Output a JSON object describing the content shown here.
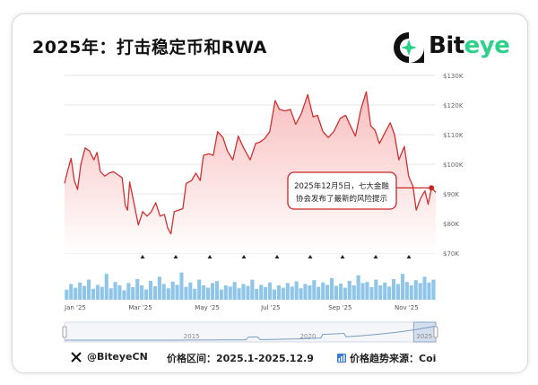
{
  "header": {
    "title": "2025年：打击稳定币和RWA",
    "brand_prefix": "Bit",
    "brand_suffix": "eye"
  },
  "colors": {
    "line": "#d32f2f",
    "area_top": "#f8b4b4",
    "area_bottom": "#ffffff",
    "volume": "#8ec5e8",
    "brand_green": "#2fd08a"
  },
  "annotation": {
    "line1": "2025年12月5日，七大金融",
    "line2": "协会发布了最新的风险提示",
    "date": "2025-12-05",
    "value": 92000
  },
  "footer": {
    "handle": "@BiteyeCN",
    "range_label": "价格区间：2025.1-2025.12.9",
    "source_label": "价格趋势来源：Coi"
  },
  "chart_data": {
    "type": "line",
    "title": "2025年：打击稳定币和RWA",
    "xlabel": "",
    "ylabel": "",
    "x_range": [
      "2025-01-01",
      "2025-12-09"
    ],
    "ylim": [
      70000,
      130000
    ],
    "y_ticks": [
      "$70K",
      "$80K",
      "$90K",
      "$100K",
      "$110K",
      "$120K",
      "$130K"
    ],
    "y_tick_values": [
      70000,
      80000,
      90000,
      100000,
      110000,
      120000,
      130000
    ],
    "x_ticks": [
      "Jan '25",
      "Mar '25",
      "May '25",
      "Jul '25",
      "Sep '25",
      "Nov '25"
    ],
    "x_tick_months": [
      0,
      2,
      4,
      6,
      8,
      10
    ],
    "grid": true,
    "y_axis_side": "right",
    "series": [
      {
        "points": [
          [
            "2025-01-01",
            93500
          ],
          [
            "2025-01-04",
            98000
          ],
          [
            "2025-01-07",
            102000
          ],
          [
            "2025-01-10",
            94500
          ],
          [
            "2025-01-13",
            91500
          ],
          [
            "2025-01-16",
            100000
          ],
          [
            "2025-01-20",
            105500
          ],
          [
            "2025-01-24",
            104500
          ],
          [
            "2025-01-28",
            101500
          ],
          [
            "2025-01-31",
            104000
          ],
          [
            "2025-02-03",
            97500
          ],
          [
            "2025-02-07",
            96000
          ],
          [
            "2025-02-11",
            97000
          ],
          [
            "2025-02-15",
            97500
          ],
          [
            "2025-02-19",
            96500
          ],
          [
            "2025-02-23",
            95500
          ],
          [
            "2025-02-26",
            86000
          ],
          [
            "2025-02-28",
            84500
          ],
          [
            "2025-03-02",
            94000
          ],
          [
            "2025-03-05",
            88500
          ],
          [
            "2025-03-10",
            79500
          ],
          [
            "2025-03-14",
            84000
          ],
          [
            "2025-03-18",
            82500
          ],
          [
            "2025-03-22",
            84000
          ],
          [
            "2025-03-26",
            87000
          ],
          [
            "2025-03-30",
            82500
          ],
          [
            "2025-04-03",
            83000
          ],
          [
            "2025-04-06",
            78500
          ],
          [
            "2025-04-09",
            76500
          ],
          [
            "2025-04-12",
            84000
          ],
          [
            "2025-04-16",
            84500
          ],
          [
            "2025-04-20",
            85000
          ],
          [
            "2025-04-23",
            93500
          ],
          [
            "2025-04-28",
            94500
          ],
          [
            "2025-05-02",
            97000
          ],
          [
            "2025-05-06",
            94500
          ],
          [
            "2025-05-09",
            103000
          ],
          [
            "2025-05-14",
            103500
          ],
          [
            "2025-05-18",
            103000
          ],
          [
            "2025-05-22",
            111000
          ],
          [
            "2025-05-27",
            109000
          ],
          [
            "2025-05-31",
            104500
          ],
          [
            "2025-06-05",
            101500
          ],
          [
            "2025-06-10",
            109500
          ],
          [
            "2025-06-15",
            105500
          ],
          [
            "2025-06-21",
            101500
          ],
          [
            "2025-06-26",
            107000
          ],
          [
            "2025-06-30",
            107500
          ],
          [
            "2025-07-04",
            108500
          ],
          [
            "2025-07-09",
            111000
          ],
          [
            "2025-07-14",
            121500
          ],
          [
            "2025-07-18",
            118500
          ],
          [
            "2025-07-23",
            118000
          ],
          [
            "2025-07-28",
            118500
          ],
          [
            "2025-08-02",
            113500
          ],
          [
            "2025-08-07",
            117000
          ],
          [
            "2025-08-13",
            123500
          ],
          [
            "2025-08-18",
            116000
          ],
          [
            "2025-08-22",
            116500
          ],
          [
            "2025-08-27",
            111000
          ],
          [
            "2025-09-01",
            109000
          ],
          [
            "2025-09-06",
            111000
          ],
          [
            "2025-09-12",
            115500
          ],
          [
            "2025-09-17",
            116500
          ],
          [
            "2025-09-22",
            112500
          ],
          [
            "2025-09-26",
            109500
          ],
          [
            "2025-10-01",
            118500
          ],
          [
            "2025-10-06",
            124500
          ],
          [
            "2025-10-10",
            113000
          ],
          [
            "2025-10-14",
            111500
          ],
          [
            "2025-10-18",
            107000
          ],
          [
            "2025-10-23",
            110500
          ],
          [
            "2025-10-28",
            114000
          ],
          [
            "2025-11-01",
            110000
          ],
          [
            "2025-11-05",
            101500
          ],
          [
            "2025-11-10",
            106000
          ],
          [
            "2025-11-14",
            96000
          ],
          [
            "2025-11-18",
            92500
          ],
          [
            "2025-11-21",
            84500
          ],
          [
            "2025-11-25",
            88500
          ],
          [
            "2025-11-29",
            91000
          ],
          [
            "2025-12-02",
            86500
          ],
          [
            "2025-12-05",
            92000
          ],
          [
            "2025-12-09",
            90500
          ]
        ]
      }
    ],
    "volume": {
      "note": "relative daily volume bars",
      "values": [
        0.35,
        0.55,
        0.42,
        0.6,
        0.48,
        0.7,
        0.38,
        0.52,
        0.45,
        0.9,
        0.4,
        0.62,
        0.5,
        0.33,
        0.58,
        0.44,
        0.72,
        0.5,
        0.36,
        0.66,
        0.47,
        0.8,
        0.55,
        0.4,
        0.63,
        0.52,
        0.95,
        0.45,
        0.6,
        0.38,
        0.7,
        0.5,
        0.42,
        0.58,
        0.65,
        0.35,
        0.5,
        0.46,
        0.62,
        0.4,
        0.55,
        0.48,
        0.7,
        0.38,
        0.52,
        0.44,
        0.6,
        0.36,
        0.5,
        0.42,
        0.58,
        0.46,
        0.64,
        0.4,
        0.55,
        0.5,
        0.68,
        0.45,
        0.6,
        0.52,
        0.75,
        0.48,
        0.56,
        0.42,
        0.66,
        0.5,
        0.85,
        0.58,
        0.62,
        0.44,
        0.7,
        0.5,
        0.6,
        0.46,
        0.72,
        0.55,
        0.9,
        0.62,
        0.5,
        0.68,
        0.58,
        0.8,
        0.6,
        0.7
      ]
    },
    "navigator": {
      "labels": [
        "2015",
        "2020",
        "2025"
      ],
      "label_years": [
        2015,
        2020,
        2025
      ]
    }
  }
}
